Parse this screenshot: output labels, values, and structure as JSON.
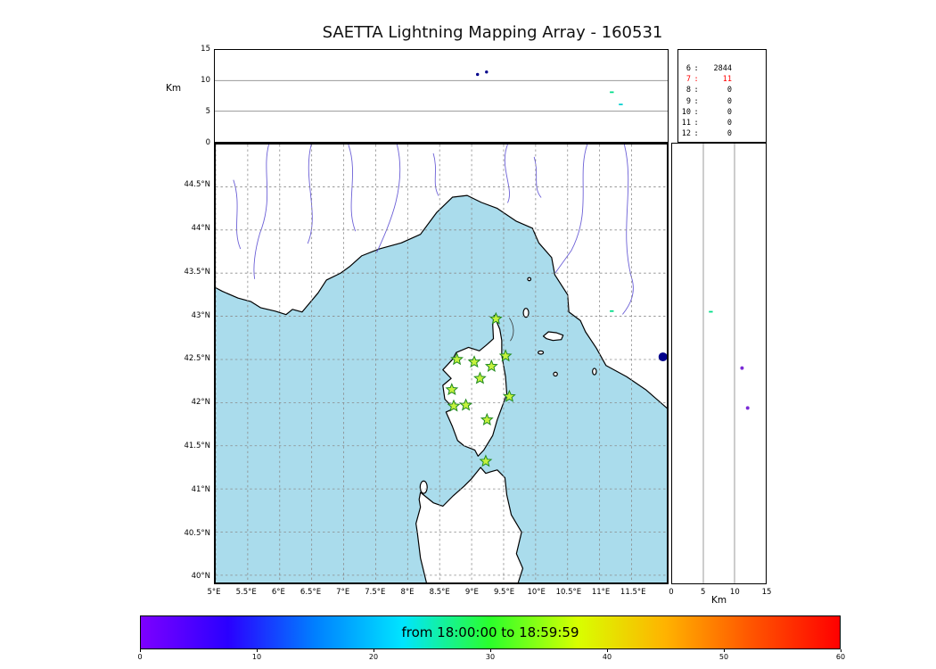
{
  "title": "SAETTA Lightning Mapping Array - 160531",
  "alt_panel": {
    "ylabel": "Km",
    "yticks": [
      {
        "v": 15,
        "label": "15"
      },
      {
        "v": 10,
        "label": "10"
      },
      {
        "v": 5,
        "label": "5"
      },
      {
        "v": 0,
        "label": "0"
      }
    ],
    "grid_km": [
      5,
      10
    ]
  },
  "stats_panel": {
    "rows": [
      {
        "label": "6",
        "value": "2844",
        "color": "#000000"
      },
      {
        "label": "7",
        "value": "11",
        "color": "#ff0000"
      },
      {
        "label": "8",
        "value": "0",
        "color": "#000000"
      },
      {
        "label": "9",
        "value": "0",
        "color": "#000000"
      },
      {
        "label": "10",
        "value": "0",
        "color": "#000000"
      },
      {
        "label": "11",
        "value": "0",
        "color": "#000000"
      },
      {
        "label": "12",
        "value": "0",
        "color": "#000000"
      }
    ]
  },
  "map_panel": {
    "sea_color": "#aadcec",
    "land_color": "#ffffff",
    "coast_color": "#000000",
    "river_color": "#6b5fd6",
    "grid_color": "#8a8a8a",
    "station_fill": "#c6f23d",
    "station_edge": "#1f8a1f",
    "lat_ticks": [
      {
        "v": 44.5,
        "label": "44.5°N"
      },
      {
        "v": 44,
        "label": "44°N"
      },
      {
        "v": 43.5,
        "label": "43.5°N"
      },
      {
        "v": 43,
        "label": "43°N"
      },
      {
        "v": 42.5,
        "label": "42.5°N"
      },
      {
        "v": 42,
        "label": "42°N"
      },
      {
        "v": 41.5,
        "label": "41.5°N"
      },
      {
        "v": 41,
        "label": "41°N"
      },
      {
        "v": 40.5,
        "label": "40.5°N"
      },
      {
        "v": 40,
        "label": "40°N"
      }
    ],
    "lon_ticks": [
      {
        "v": 5,
        "label": "5°E"
      },
      {
        "v": 5.5,
        "label": "5.5°E"
      },
      {
        "v": 6,
        "label": "6°E"
      },
      {
        "v": 6.5,
        "label": "6.5°E"
      },
      {
        "v": 7,
        "label": "7°E"
      },
      {
        "v": 7.5,
        "label": "7.5°E"
      },
      {
        "v": 8,
        "label": "8°E"
      },
      {
        "v": 8.5,
        "label": "8.5°E"
      },
      {
        "v": 9,
        "label": "9°E"
      },
      {
        "v": 9.5,
        "label": "9.5°E"
      },
      {
        "v": 10,
        "label": "10°E"
      },
      {
        "v": 10.5,
        "label": "10.5°E"
      },
      {
        "v": 11,
        "label": "11°E"
      },
      {
        "v": 11.5,
        "label": "11.5°E"
      }
    ]
  },
  "right_panel": {
    "xlabel": "Km",
    "xticks": [
      {
        "v": 0,
        "label": "0"
      },
      {
        "v": 5,
        "label": "5"
      },
      {
        "v": 10,
        "label": "10"
      },
      {
        "v": 15,
        "label": "15"
      }
    ],
    "grid_km": [
      5,
      10
    ]
  },
  "colorbar": {
    "label": "from 18:00:00 to 18:59:59",
    "ticks": [
      {
        "v": 0,
        "label": "0"
      },
      {
        "v": 10,
        "label": "10"
      },
      {
        "v": 20,
        "label": "20"
      },
      {
        "v": 30,
        "label": "30"
      },
      {
        "v": 40,
        "label": "40"
      },
      {
        "v": 50,
        "label": "50"
      },
      {
        "v": 60,
        "label": "60"
      }
    ],
    "stops": [
      "#7d00ff",
      "#2a00ff",
      "#0080ff",
      "#00e5ff",
      "#2bff2b",
      "#d8ff00",
      "#ffb300",
      "#ff5400",
      "#ff0000"
    ]
  },
  "chart_data": [
    {
      "type": "scatter",
      "name": "altitude_vs_longitude",
      "ylabel": "Km",
      "xlim": [
        5,
        12.05
      ],
      "ylim": [
        0,
        15
      ],
      "grid_km": [
        5,
        10
      ],
      "points": [
        {
          "lon": 9.09,
          "alt_km": 11.0,
          "color": "#00008b",
          "mark": "dot"
        },
        {
          "lon": 9.23,
          "alt_km": 11.4,
          "color": "#00008b",
          "mark": "dot"
        },
        {
          "lon": 11.18,
          "alt_km": 8.1,
          "color": "#00dd88",
          "mark": "dash"
        },
        {
          "lon": 11.32,
          "alt_km": 6.1,
          "color": "#00cfcf",
          "mark": "dash"
        }
      ]
    },
    {
      "type": "table",
      "name": "sources_per_station_count",
      "rows": [
        [
          "6",
          2844
        ],
        [
          "7",
          11
        ],
        [
          "8",
          0
        ],
        [
          "9",
          0
        ],
        [
          "10",
          0
        ],
        [
          "11",
          0
        ],
        [
          "12",
          0
        ]
      ],
      "highlight": {
        "row": "7",
        "color": "#ff0000"
      }
    },
    {
      "type": "scatter",
      "name": "map_longitude_latitude",
      "xlim": [
        5,
        12.05
      ],
      "ylim": [
        39.92,
        44.99
      ],
      "grid": "dashed",
      "stations_lon_lat": [
        [
          9.38,
          42.97
        ],
        [
          8.77,
          42.5
        ],
        [
          9.04,
          42.47
        ],
        [
          9.31,
          42.42
        ],
        [
          9.53,
          42.54
        ],
        [
          9.13,
          42.28
        ],
        [
          8.69,
          42.15
        ],
        [
          8.72,
          41.96
        ],
        [
          8.91,
          41.97
        ],
        [
          9.59,
          42.07
        ],
        [
          9.24,
          41.8
        ],
        [
          9.22,
          41.32
        ]
      ],
      "points": [
        {
          "lon": 11.99,
          "lat": 42.53,
          "color": "#00008b",
          "mark": "dot-large"
        },
        {
          "lon": 11.19,
          "lat": 43.06,
          "color": "#00dd88",
          "mark": "dash"
        }
      ]
    },
    {
      "type": "scatter",
      "name": "altitude_vs_latitude",
      "xlabel": "Km",
      "xlim": [
        0,
        15
      ],
      "ylim": [
        39.92,
        44.99
      ],
      "grid_km": [
        5,
        10
      ],
      "points": [
        {
          "alt_km": 6.2,
          "lat": 43.05,
          "color": "#00dd88",
          "mark": "dash"
        },
        {
          "alt_km": 11.2,
          "lat": 42.4,
          "color": "#7a2bd6",
          "mark": "dot"
        },
        {
          "alt_km": 12.1,
          "lat": 41.94,
          "color": "#7a2bd6",
          "mark": "dot"
        }
      ]
    },
    {
      "type": "colorbar",
      "name": "time_colorbar",
      "label": "from 18:00:00 to 18:59:59",
      "range": [
        0,
        60
      ],
      "ticks": [
        0,
        10,
        20,
        30,
        40,
        50,
        60
      ]
    }
  ]
}
